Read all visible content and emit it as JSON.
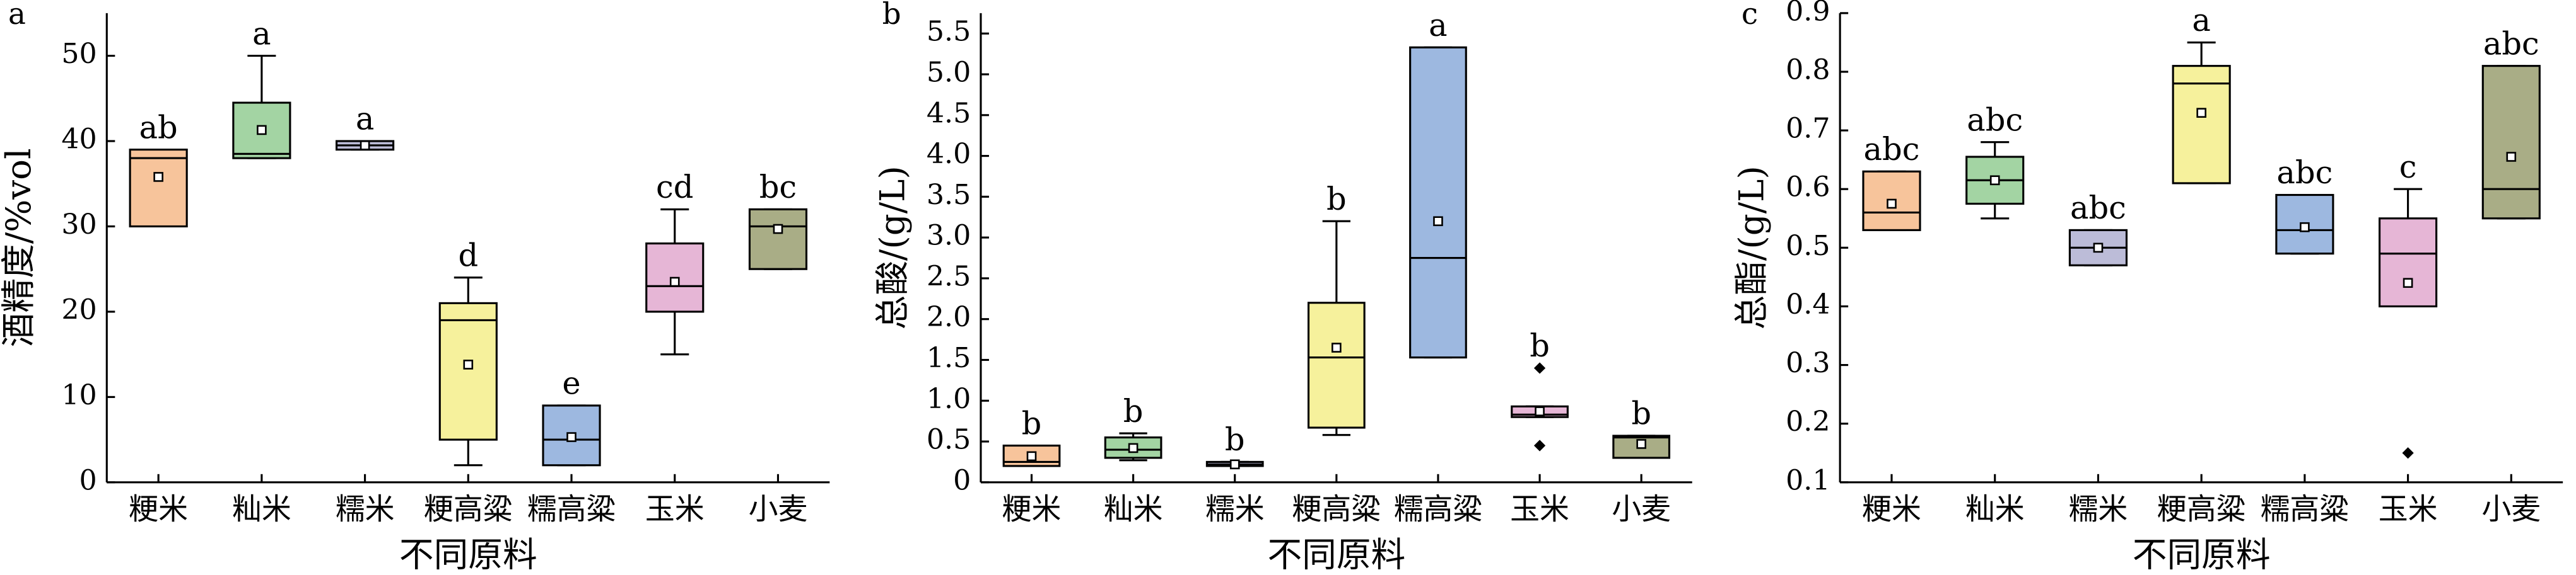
{
  "chart_data": [
    {
      "type": "box",
      "panel": "a",
      "y_label": "酒精度/%vol",
      "x_label": "不同原料",
      "categories": [
        "粳米",
        "籼米",
        "糯米",
        "粳高粱",
        "糯高粱",
        "玉米",
        "小麦"
      ],
      "colors": [
        "#f7c49b",
        "#a3d4a3",
        "#bcbcd8",
        "#f6f19c",
        "#9db8e0",
        "#e6b6d6",
        "#a9ad86"
      ],
      "boxes": [
        {
          "whislo": 30,
          "q1": 30,
          "med": 38,
          "q3": 39,
          "whishi": 39,
          "mean": 35.8,
          "fliers": []
        },
        {
          "whislo": 38,
          "q1": 38,
          "med": 38.5,
          "q3": 44.5,
          "whishi": 50,
          "mean": 41.3,
          "fliers": []
        },
        {
          "whislo": 39,
          "q1": 39,
          "med": 39.5,
          "q3": 40,
          "whishi": 40,
          "mean": 39.5,
          "fliers": []
        },
        {
          "whislo": 2,
          "q1": 5,
          "med": 19,
          "q3": 21,
          "whishi": 24,
          "mean": 13.8,
          "fliers": []
        },
        {
          "whislo": 2,
          "q1": 2,
          "med": 5,
          "q3": 9,
          "whishi": 9,
          "mean": 5.3,
          "fliers": []
        },
        {
          "whislo": 15,
          "q1": 20,
          "med": 23,
          "q3": 28,
          "whishi": 32,
          "mean": 23.5,
          "fliers": []
        },
        {
          "whislo": 25,
          "q1": 25,
          "med": 30,
          "q3": 32,
          "whishi": 32,
          "mean": 29.7,
          "fliers": []
        }
      ],
      "letters": [
        "ab",
        "a",
        "a",
        "d",
        "e",
        "cd",
        "bc"
      ],
      "ylim": [
        0,
        55
      ],
      "yticks": [
        0,
        10,
        20,
        30,
        40,
        50
      ]
    },
    {
      "type": "box",
      "panel": "b",
      "y_label": "总酸/(g/L)",
      "x_label": "不同原料",
      "categories": [
        "粳米",
        "籼米",
        "糯米",
        "粳高粱",
        "糯高粱",
        "玉米",
        "小麦"
      ],
      "colors": [
        "#f7c49b",
        "#a3d4a3",
        "#bcbcd8",
        "#f6f19c",
        "#9db8e0",
        "#e6b6d6",
        "#a9ad86"
      ],
      "boxes": [
        {
          "whislo": 0.2,
          "q1": 0.2,
          "med": 0.25,
          "q3": 0.45,
          "whishi": 0.45,
          "mean": 0.32,
          "fliers": []
        },
        {
          "whislo": 0.27,
          "q1": 0.3,
          "med": 0.4,
          "q3": 0.55,
          "whishi": 0.6,
          "mean": 0.42,
          "fliers": []
        },
        {
          "whislo": 0.2,
          "q1": 0.2,
          "med": 0.22,
          "q3": 0.25,
          "whishi": 0.25,
          "mean": 0.22,
          "fliers": []
        },
        {
          "whislo": 0.58,
          "q1": 0.67,
          "med": 1.53,
          "q3": 2.2,
          "whishi": 3.2,
          "mean": 1.65,
          "fliers": []
        },
        {
          "whislo": 1.53,
          "q1": 1.53,
          "med": 2.75,
          "q3": 5.33,
          "whishi": 5.33,
          "mean": 3.2,
          "fliers": []
        },
        {
          "whislo": 0.8,
          "q1": 0.8,
          "med": 0.83,
          "q3": 0.93,
          "whishi": 0.93,
          "mean": 0.87,
          "fliers": [
            1.4,
            0.45
          ]
        },
        {
          "whislo": 0.3,
          "q1": 0.3,
          "med": 0.55,
          "q3": 0.57,
          "whishi": 0.57,
          "mean": 0.47,
          "fliers": []
        }
      ],
      "letters": [
        "b",
        "b",
        "b",
        "b",
        "a",
        "b",
        "b"
      ],
      "ylim": [
        0,
        5.75
      ],
      "yticks": [
        0,
        0.5,
        {
          "value": 1,
          "label": "1.0"
        },
        1.5,
        {
          "value": 2,
          "label": "2.0"
        },
        2.5,
        {
          "value": 3,
          "label": "3.0"
        },
        3.5,
        {
          "value": 4,
          "label": "4.0"
        },
        4.5,
        {
          "value": 5,
          "label": "5.0"
        },
        5.5
      ]
    },
    {
      "type": "box",
      "panel": "c",
      "y_label": "总酯/(g/L)",
      "x_label": "不同原料",
      "categories": [
        "粳米",
        "籼米",
        "糯米",
        "粳高粱",
        "糯高粱",
        "玉米",
        "小麦"
      ],
      "colors": [
        "#f7c49b",
        "#a3d4a3",
        "#bcbcd8",
        "#f6f19c",
        "#9db8e0",
        "#e6b6d6",
        "#a9ad86"
      ],
      "boxes": [
        {
          "whislo": 0.53,
          "q1": 0.53,
          "med": 0.56,
          "q3": 0.63,
          "whishi": 0.63,
          "mean": 0.575,
          "fliers": []
        },
        {
          "whislo": 0.55,
          "q1": 0.575,
          "med": 0.615,
          "q3": 0.655,
          "whishi": 0.68,
          "mean": 0.615,
          "fliers": []
        },
        {
          "whislo": 0.47,
          "q1": 0.47,
          "med": 0.5,
          "q3": 0.53,
          "whishi": 0.53,
          "mean": 0.5,
          "fliers": []
        },
        {
          "whislo": 0.61,
          "q1": 0.61,
          "med": 0.78,
          "q3": 0.81,
          "whishi": 0.85,
          "mean": 0.73,
          "fliers": []
        },
        {
          "whislo": 0.49,
          "q1": 0.49,
          "med": 0.53,
          "q3": 0.59,
          "whishi": 0.59,
          "mean": 0.535,
          "fliers": []
        },
        {
          "whislo": 0.4,
          "q1": 0.4,
          "med": 0.49,
          "q3": 0.55,
          "whishi": 0.6,
          "mean": 0.44,
          "fliers": [
            0.15
          ]
        },
        {
          "whislo": 0.55,
          "q1": 0.55,
          "med": 0.6,
          "q3": 0.81,
          "whishi": 0.81,
          "mean": 0.655,
          "fliers": []
        }
      ],
      "letters": [
        "abc",
        "abc",
        "abc",
        "a",
        "abc",
        "c",
        "abc"
      ],
      "ylim": [
        0.1,
        0.9
      ],
      "yticks": [
        0.1,
        0.2,
        0.3,
        0.4,
        0.5,
        0.6,
        0.7,
        0.8,
        0.9
      ]
    }
  ]
}
